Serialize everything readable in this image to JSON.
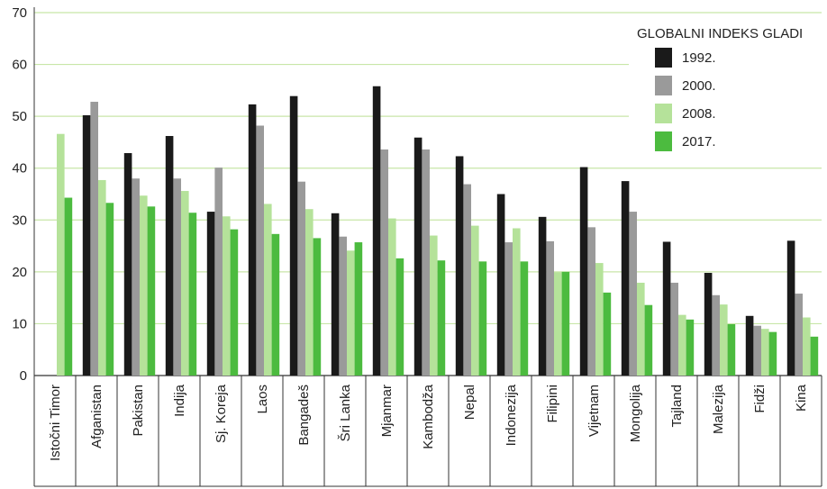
{
  "chart_data": {
    "type": "bar",
    "title": "",
    "xlabel": "",
    "ylabel": "",
    "ylim": [
      0,
      70
    ],
    "yticks": [
      0,
      10,
      20,
      30,
      40,
      50,
      60,
      70
    ],
    "grid": true,
    "legend_title": "GLOBALNI INDEKS GLADI",
    "legend_position": "top-right",
    "categories": [
      "Istočni Timor",
      "Afganistan",
      "Pakistan",
      "Indija",
      "Sj. Koreja",
      "Laos",
      "Bangadeš",
      "Šri Lanka",
      "Mjanmar",
      "Kambodža",
      "Nepal",
      "Indonezija",
      "Filipini",
      "Vijetnam",
      "Mongolija",
      "Tajland",
      "Malezija",
      "Fidži",
      "Kina"
    ],
    "series": [
      {
        "name": "1992.",
        "color": "#1a1a1a",
        "values": [
          null,
          50.2,
          42.9,
          46.2,
          31.6,
          52.3,
          53.9,
          31.3,
          55.8,
          45.9,
          42.3,
          35.0,
          30.6,
          40.2,
          37.5,
          25.8,
          19.8,
          11.5,
          26.0
        ]
      },
      {
        "name": "2000.",
        "color": "#9a9a9a",
        "values": [
          null,
          52.8,
          38.0,
          38.0,
          40.1,
          48.2,
          37.4,
          26.8,
          43.6,
          43.6,
          36.9,
          25.7,
          25.9,
          28.6,
          31.6,
          17.9,
          15.5,
          9.6,
          15.8
        ]
      },
      {
        "name": "2008.",
        "color": "#b5e29a",
        "values": [
          46.6,
          37.7,
          34.7,
          35.6,
          30.7,
          33.1,
          32.1,
          24.1,
          30.3,
          27.0,
          28.9,
          28.4,
          19.9,
          21.7,
          17.9,
          11.7,
          13.7,
          9.0,
          11.2
        ]
      },
      {
        "name": "2017.",
        "color": "#4cbb3f",
        "values": [
          34.3,
          33.3,
          32.6,
          31.4,
          28.2,
          27.3,
          26.5,
          25.7,
          22.6,
          22.2,
          22.0,
          22.0,
          20.0,
          16.0,
          13.6,
          10.8,
          9.9,
          8.4,
          7.5
        ]
      }
    ]
  }
}
